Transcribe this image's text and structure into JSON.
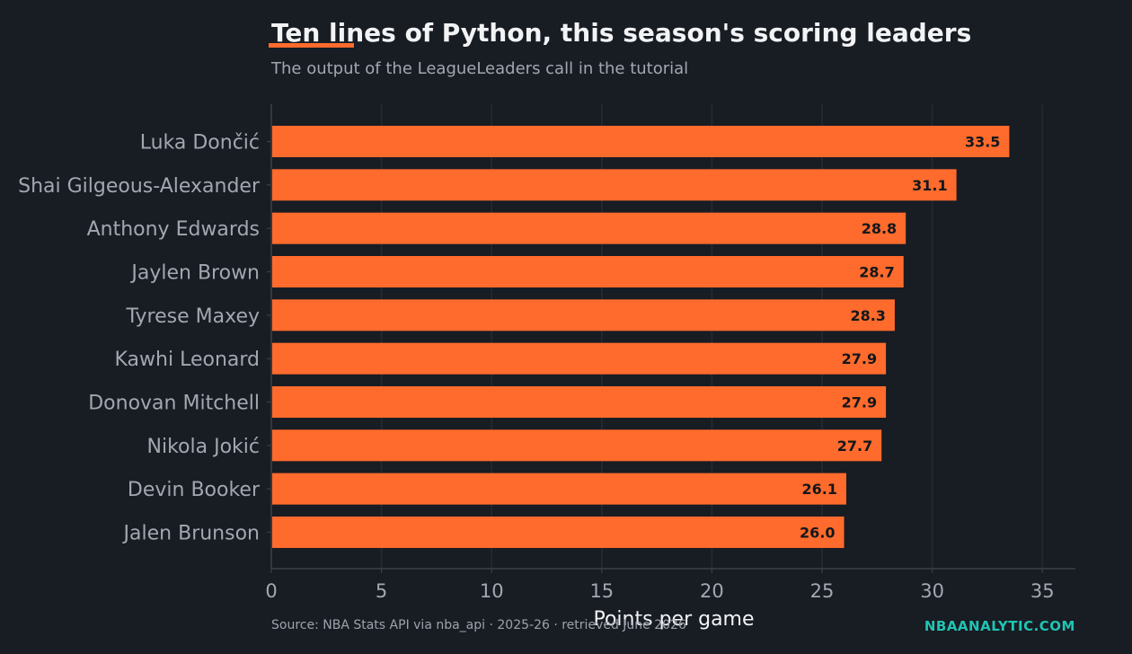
{
  "header": {
    "title": "Ten lines of Python, this season's scoring leaders",
    "subtitle": "The output of the LeagueLeaders call in the tutorial"
  },
  "footer": {
    "source": "Source: NBA Stats API via nba_api · 2025-26 · retrieved June 2026",
    "brand": "NBAANALYTIC.COM"
  },
  "colors": {
    "background": "#181c23",
    "bar": "#ff6b2c",
    "accent": "#ff6b2c",
    "brand": "#1fc4b3",
    "grid": "#262b33",
    "tick_text": "#a2a8b2",
    "bar_label": "#14171c"
  },
  "chart_data": {
    "type": "bar",
    "orientation": "horizontal",
    "categories": [
      "Luka Dončić",
      "Shai Gilgeous-Alexander",
      "Anthony Edwards",
      "Jaylen Brown",
      "Tyrese Maxey",
      "Kawhi Leonard",
      "Donovan Mitchell",
      "Nikola Jokić",
      "Devin Booker",
      "Jalen Brunson"
    ],
    "values": [
      33.5,
      31.1,
      28.8,
      28.7,
      28.3,
      27.9,
      27.9,
      27.7,
      26.1,
      26.0
    ],
    "data_labels": [
      "33.5",
      "31.1",
      "28.8",
      "28.7",
      "28.3",
      "27.9",
      "27.9",
      "27.7",
      "26.1",
      "26.0"
    ],
    "xlabel": "Points per game",
    "ylabel": "",
    "xlim": [
      0,
      36.5
    ],
    "xticks": [
      0,
      5,
      10,
      15,
      20,
      25,
      30,
      35
    ],
    "grid": "vertical",
    "legend": "none"
  }
}
